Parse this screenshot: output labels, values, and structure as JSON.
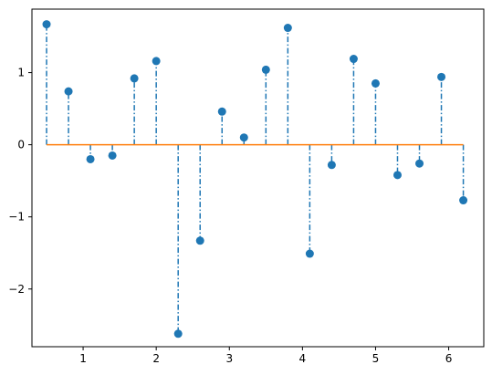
{
  "chart_data": {
    "type": "stem",
    "title": "",
    "xlabel": "",
    "ylabel": "",
    "xlim": [
      0.3,
      6.48
    ],
    "ylim": [
      -2.8,
      1.88
    ],
    "x_ticks": [
      1,
      2,
      3,
      4,
      5,
      6
    ],
    "x_tick_labels": [
      "1",
      "2",
      "3",
      "4",
      "5",
      "6"
    ],
    "y_ticks": [
      -2,
      -1,
      0,
      1
    ],
    "y_tick_labels": [
      "−2",
      "−1",
      "0",
      "1"
    ],
    "baseline": 0,
    "grid": false,
    "series": [
      {
        "x": [
          0.5,
          0.8,
          1.1,
          1.4,
          1.7,
          2.0,
          2.3,
          2.6,
          2.9,
          3.2,
          3.5,
          3.8,
          4.1,
          4.4,
          4.7,
          5.0,
          5.3,
          5.6,
          5.9,
          6.2
        ],
        "values": [
          1.67,
          0.74,
          -0.2,
          -0.15,
          0.92,
          1.16,
          -2.62,
          -1.33,
          0.46,
          0.1,
          1.04,
          1.62,
          -1.51,
          -0.28,
          1.19,
          0.85,
          -0.42,
          -0.26,
          0.94,
          -0.77
        ],
        "marker_color": "#1f77b4",
        "stem_color": "#1f77b4",
        "stem_style": "dash-dot",
        "baseline_color": "#ff7f0e"
      }
    ]
  }
}
